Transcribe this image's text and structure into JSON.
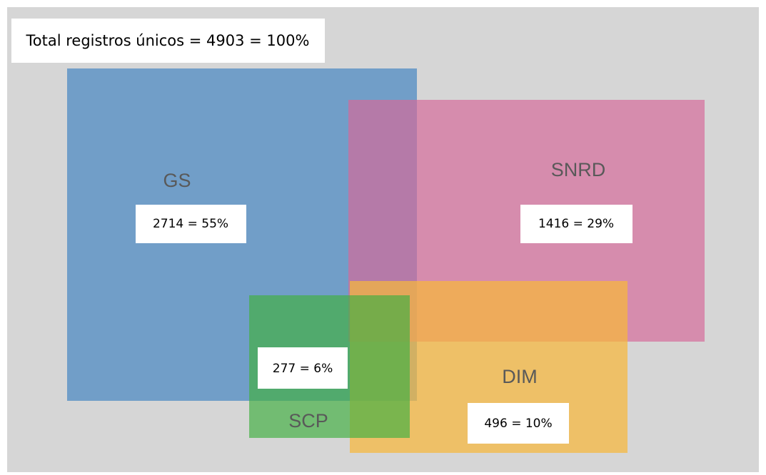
{
  "total": "Total registros únicos = 4903 = 100%",
  "sets": [
    {
      "name": "GS",
      "label": "2714 = 55%"
    },
    {
      "name": "SNRD",
      "label": "1416 = 29%"
    },
    {
      "name": "SCP",
      "label": "277 = 6%"
    },
    {
      "name": "DIM",
      "label": "496 = 10%"
    }
  ]
}
